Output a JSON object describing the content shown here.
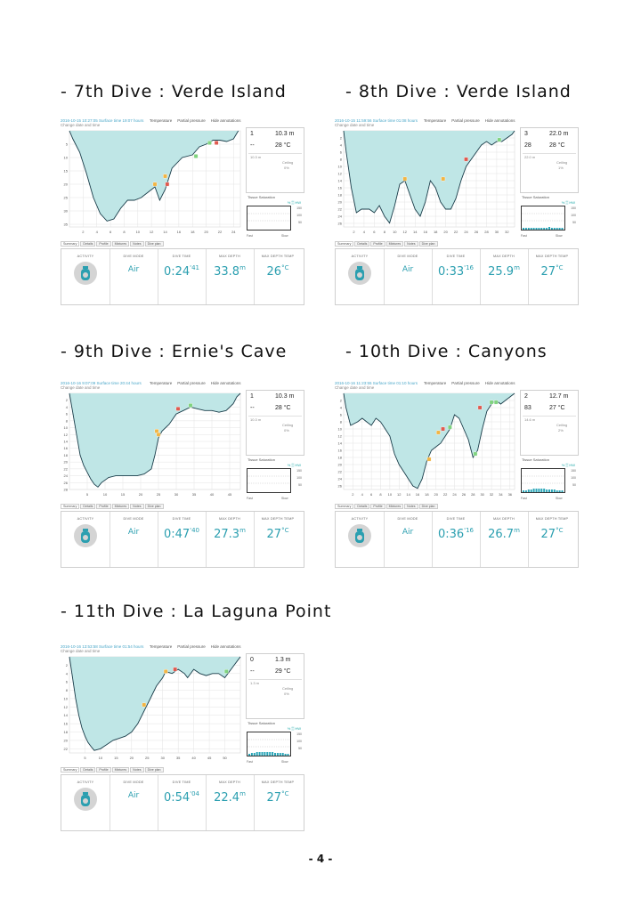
{
  "page_number": "- 4 -",
  "common": {
    "legend": [
      "Temperature",
      "Partial pressure",
      "Hide annotations"
    ],
    "tabs": [
      "Summary",
      "Details",
      "Profile",
      "Mixtures",
      "Notes",
      "Dive plan"
    ],
    "summary_labels": {
      "activity": "ACTIVITY",
      "dive_mode": "DIVE MODE",
      "dive_time": "DIVE TIME",
      "max_depth": "MAX DEPTH",
      "max_depth_temp": "MAX DEPTH TEMP"
    },
    "tissue_title": "Tissue Saturation",
    "tissue_legend": "% ▒ HW",
    "tissue_foot_left": "Fast",
    "tissue_foot_right": "Slow",
    "tissue_axis": [
      "150",
      "100",
      "50"
    ],
    "ceiling_label": "Ceiling",
    "icon": "scuba-tank-icon",
    "fill_color": "#bfe6e6",
    "line_color": "#1a3d4a"
  },
  "dives": [
    {
      "heading": "- 7th Dive : Verde Island",
      "meta_line": "2016-10-15 10:27:05  Surface time 19:07 hours",
      "meta_sub": "Change date and time",
      "stats": {
        "dive_no": "1",
        "depth": "10.3 m",
        "gas": "--",
        "temp": "28 °C",
        "small1": "10.3 m",
        "pct": "0%"
      },
      "dive_mode": "Air",
      "dive_time_main": "0:24",
      "dive_time_sec": "'41",
      "max_depth_main": "33.8",
      "max_depth_unit": "m",
      "max_depth_temp_main": "26",
      "max_depth_temp_unit": "°C",
      "x_ticks": [
        "2",
        "4",
        "6",
        "8",
        "10",
        "12",
        "14",
        "16",
        "18",
        "20",
        "22",
        "24"
      ],
      "y_ticks": [
        "5",
        "10",
        "15",
        "20",
        "25",
        "30",
        "35"
      ],
      "profile": {
        "duration": 25,
        "max_depth": 36,
        "points": [
          [
            0,
            0
          ],
          [
            0.5,
            3
          ],
          [
            1.5,
            8
          ],
          [
            2.5,
            16
          ],
          [
            3.5,
            25
          ],
          [
            4.5,
            31
          ],
          [
            5.5,
            33.8
          ],
          [
            6.5,
            33
          ],
          [
            7.5,
            29
          ],
          [
            8.5,
            26
          ],
          [
            9.5,
            26
          ],
          [
            10.5,
            25
          ],
          [
            11.5,
            23
          ],
          [
            12.5,
            21
          ],
          [
            13.2,
            26
          ],
          [
            14,
            22
          ],
          [
            15,
            14
          ],
          [
            16.5,
            10
          ],
          [
            18,
            9
          ],
          [
            19,
            6
          ],
          [
            20,
            5
          ],
          [
            21,
            3.5
          ],
          [
            22,
            3.5
          ],
          [
            23,
            4
          ],
          [
            24,
            3
          ],
          [
            24.7,
            0
          ]
        ],
        "markers": [
          [
            12.5,
            20
          ],
          [
            14,
            17
          ],
          [
            14.3,
            20
          ],
          [
            18.5,
            9.5
          ],
          [
            20.5,
            4.5
          ],
          [
            21.5,
            4.5
          ]
        ]
      },
      "tissue_bars": []
    },
    {
      "heading": "- 8th Dive : Verde Island",
      "meta_line": "2016-10-15 11:59:56  Surface time 01:08 hours",
      "meta_sub": "Change date and time",
      "stats": {
        "dive_no": "3",
        "depth": "22.0 m",
        "gas": "28",
        "temp": "28 °C",
        "small1": "22.0 m",
        "pct": "1%"
      },
      "dive_mode": "Air",
      "dive_time_main": "0:33",
      "dive_time_sec": "'16",
      "max_depth_main": "25.9",
      "max_depth_unit": "m",
      "max_depth_temp_main": "27",
      "max_depth_temp_unit": "°C",
      "x_ticks": [
        "2",
        "4",
        "6",
        "8",
        "10",
        "12",
        "14",
        "16",
        "18",
        "20",
        "22",
        "24",
        "26",
        "28",
        "30",
        "32"
      ],
      "y_ticks": [
        "2",
        "4",
        "6",
        "8",
        "10",
        "12",
        "14",
        "16",
        "18",
        "20",
        "22",
        "24",
        "26"
      ],
      "profile": {
        "duration": 33.5,
        "max_depth": 27,
        "points": [
          [
            0,
            0
          ],
          [
            0.5,
            6
          ],
          [
            1.5,
            16
          ],
          [
            2.5,
            23
          ],
          [
            3.5,
            22
          ],
          [
            5,
            22
          ],
          [
            6,
            23
          ],
          [
            7,
            21
          ],
          [
            8,
            24
          ],
          [
            9,
            25.9
          ],
          [
            10,
            21
          ],
          [
            11,
            15
          ],
          [
            12,
            14
          ],
          [
            13,
            18
          ],
          [
            14,
            22
          ],
          [
            15,
            24
          ],
          [
            16,
            20
          ],
          [
            17,
            14
          ],
          [
            18,
            16
          ],
          [
            19,
            20
          ],
          [
            20,
            22
          ],
          [
            21,
            22
          ],
          [
            22,
            19
          ],
          [
            23,
            14
          ],
          [
            24,
            10
          ],
          [
            25,
            8
          ],
          [
            26,
            6
          ],
          [
            27,
            4
          ],
          [
            28,
            3
          ],
          [
            29,
            4
          ],
          [
            30,
            3
          ],
          [
            31,
            3
          ],
          [
            32,
            2
          ],
          [
            33,
            1
          ],
          [
            33.5,
            0
          ]
        ],
        "markers": [
          [
            12,
            13.5
          ],
          [
            19.5,
            13.5
          ],
          [
            24,
            8
          ],
          [
            30.5,
            2.5
          ]
        ]
      },
      "tissue_bars": [
        2,
        2,
        2,
        2,
        2,
        2,
        2,
        2,
        2,
        2,
        3,
        2,
        2,
        2,
        2,
        2
      ]
    },
    {
      "heading": "- 9th Dive : Ernie's Cave",
      "meta_line": "2016-10-16 9:07:09  Surface time 20:44 hours",
      "meta_sub": "Change date and time",
      "stats": {
        "dive_no": "1",
        "depth": "10.3 m",
        "gas": "--",
        "temp": "28 °C",
        "small1": "10.3 m",
        "pct": "0%"
      },
      "dive_mode": "Air",
      "dive_time_main": "0:47",
      "dive_time_sec": "'40",
      "max_depth_main": "27.3",
      "max_depth_unit": "m",
      "max_depth_temp_main": "27",
      "max_depth_temp_unit": "°C",
      "x_ticks": [
        "5",
        "10",
        "15",
        "20",
        "25",
        "30",
        "35",
        "40",
        "45"
      ],
      "y_ticks": [
        "2",
        "4",
        "6",
        "8",
        "10",
        "12",
        "14",
        "16",
        "18",
        "20",
        "22",
        "24",
        "26",
        "28"
      ],
      "profile": {
        "duration": 48,
        "max_depth": 28,
        "points": [
          [
            0,
            0
          ],
          [
            1,
            6
          ],
          [
            2,
            12
          ],
          [
            3,
            18
          ],
          [
            4,
            21
          ],
          [
            5,
            23
          ],
          [
            6,
            25
          ],
          [
            7,
            26.5
          ],
          [
            8,
            27.3
          ],
          [
            9,
            26
          ],
          [
            11,
            24.5
          ],
          [
            13,
            24
          ],
          [
            15,
            24
          ],
          [
            17,
            24
          ],
          [
            19,
            24
          ],
          [
            21,
            23.5
          ],
          [
            23,
            22
          ],
          [
            24,
            18
          ],
          [
            25,
            13
          ],
          [
            26,
            11
          ],
          [
            28,
            9
          ],
          [
            30,
            6
          ],
          [
            32,
            5
          ],
          [
            34,
            4
          ],
          [
            36,
            4.5
          ],
          [
            38,
            5
          ],
          [
            40,
            5
          ],
          [
            42,
            5.5
          ],
          [
            44,
            5
          ],
          [
            46,
            3
          ],
          [
            47,
            1
          ],
          [
            48,
            0
          ]
        ],
        "markers": [
          [
            24.5,
            11
          ],
          [
            25,
            12
          ],
          [
            30.5,
            4.5
          ],
          [
            34,
            3.5
          ]
        ]
      },
      "tissue_bars": []
    },
    {
      "heading": "- 10th Dive : Canyons",
      "meta_line": "2016-10-16 11:23:55  Surface time 01:10 hours",
      "meta_sub": "Change date and time",
      "stats": {
        "dive_no": "2",
        "depth": "12.7 m",
        "gas": "83",
        "temp": "27 °C",
        "small1": "14.6 m",
        "pct": "2%"
      },
      "dive_mode": "Air",
      "dive_time_main": "0:36",
      "dive_time_sec": "'16",
      "max_depth_main": "26.7",
      "max_depth_unit": "m",
      "max_depth_temp_main": "27",
      "max_depth_temp_unit": "°C",
      "x_ticks": [
        "2",
        "4",
        "6",
        "8",
        "10",
        "12",
        "14",
        "16",
        "18",
        "20",
        "22",
        "24",
        "26",
        "28",
        "30",
        "32",
        "34",
        "36"
      ],
      "y_ticks": [
        "2",
        "4",
        "6",
        "8",
        "10",
        "12",
        "14",
        "16",
        "18",
        "20",
        "22",
        "24",
        "26"
      ],
      "profile": {
        "duration": 37,
        "max_depth": 27,
        "points": [
          [
            0,
            0
          ],
          [
            0.5,
            4
          ],
          [
            1.5,
            9
          ],
          [
            3,
            8
          ],
          [
            4,
            7
          ],
          [
            5,
            8
          ],
          [
            6,
            9
          ],
          [
            7,
            7
          ],
          [
            8,
            8
          ],
          [
            9,
            10
          ],
          [
            10,
            12
          ],
          [
            11,
            17
          ],
          [
            12,
            20
          ],
          [
            13,
            22
          ],
          [
            14,
            24
          ],
          [
            15,
            26
          ],
          [
            16,
            26.7
          ],
          [
            17,
            24
          ],
          [
            18,
            19
          ],
          [
            19,
            16
          ],
          [
            20,
            15
          ],
          [
            21,
            14
          ],
          [
            22,
            12
          ],
          [
            23,
            10
          ],
          [
            24,
            6
          ],
          [
            25,
            7
          ],
          [
            26,
            10
          ],
          [
            27,
            13
          ],
          [
            28,
            18
          ],
          [
            29,
            16
          ],
          [
            30,
            10
          ],
          [
            31,
            5
          ],
          [
            32,
            3
          ],
          [
            33,
            2
          ],
          [
            34,
            3
          ],
          [
            35,
            2
          ],
          [
            36,
            1
          ],
          [
            37,
            0
          ]
        ],
        "markers": [
          [
            18.5,
            18.5
          ],
          [
            20.5,
            11
          ],
          [
            21.5,
            10
          ],
          [
            23,
            9.5
          ],
          [
            28.5,
            17
          ],
          [
            29.5,
            4
          ],
          [
            32,
            2.5
          ],
          [
            33,
            2.5
          ]
        ]
      },
      "tissue_bars": [
        2,
        2,
        3,
        3,
        4,
        4,
        4,
        4,
        4,
        3,
        3,
        3,
        3,
        2,
        2,
        2
      ]
    },
    {
      "heading": "- 11th Dive : La Laguna Point",
      "meta_line": "2016-10-16 13:53:58  Surface time 01:54 hours",
      "meta_sub": "Change date and time",
      "stats": {
        "dive_no": "0",
        "depth": "1.3 m",
        "gas": "--",
        "temp": "29 °C",
        "small1": "1.3 m",
        "pct": "0%"
      },
      "dive_mode": "Air",
      "dive_time_main": "0:54",
      "dive_time_sec": "'04",
      "max_depth_main": "22.4",
      "max_depth_unit": "m",
      "max_depth_temp_main": "27",
      "max_depth_temp_unit": "°C",
      "x_ticks": [
        "5",
        "10",
        "15",
        "20",
        "25",
        "30",
        "35",
        "40",
        "45",
        "50"
      ],
      "y_ticks": [
        "2",
        "4",
        "6",
        "8",
        "10",
        "12",
        "14",
        "16",
        "18",
        "20",
        "22"
      ],
      "profile": {
        "duration": 55,
        "max_depth": 23,
        "points": [
          [
            0,
            0
          ],
          [
            1,
            5
          ],
          [
            2,
            10
          ],
          [
            3,
            14
          ],
          [
            4,
            17
          ],
          [
            5,
            19
          ],
          [
            6,
            20.5
          ],
          [
            7,
            21.5
          ],
          [
            8,
            22.4
          ],
          [
            10,
            22
          ],
          [
            12,
            21
          ],
          [
            14,
            20
          ],
          [
            16,
            19.5
          ],
          [
            18,
            19
          ],
          [
            20,
            18
          ],
          [
            22,
            16
          ],
          [
            24,
            13
          ],
          [
            26,
            10
          ],
          [
            28,
            7
          ],
          [
            30,
            5
          ],
          [
            31,
            3.5
          ],
          [
            33,
            4
          ],
          [
            35,
            3
          ],
          [
            37,
            4
          ],
          [
            38,
            5
          ],
          [
            40,
            3
          ],
          [
            42,
            4
          ],
          [
            44,
            4.5
          ],
          [
            46,
            4
          ],
          [
            48,
            4
          ],
          [
            50,
            5
          ],
          [
            51,
            4
          ],
          [
            52,
            3
          ],
          [
            53,
            2
          ],
          [
            54,
            1
          ],
          [
            55,
            0
          ]
        ],
        "markers": [
          [
            24,
            11.5
          ],
          [
            31,
            3.5
          ],
          [
            34,
            3
          ],
          [
            50.5,
            3.5
          ]
        ]
      },
      "tissue_bars": [
        2,
        3,
        3,
        4,
        4,
        4,
        4,
        4,
        4,
        4,
        3,
        3,
        3,
        3,
        2,
        2
      ]
    }
  ]
}
